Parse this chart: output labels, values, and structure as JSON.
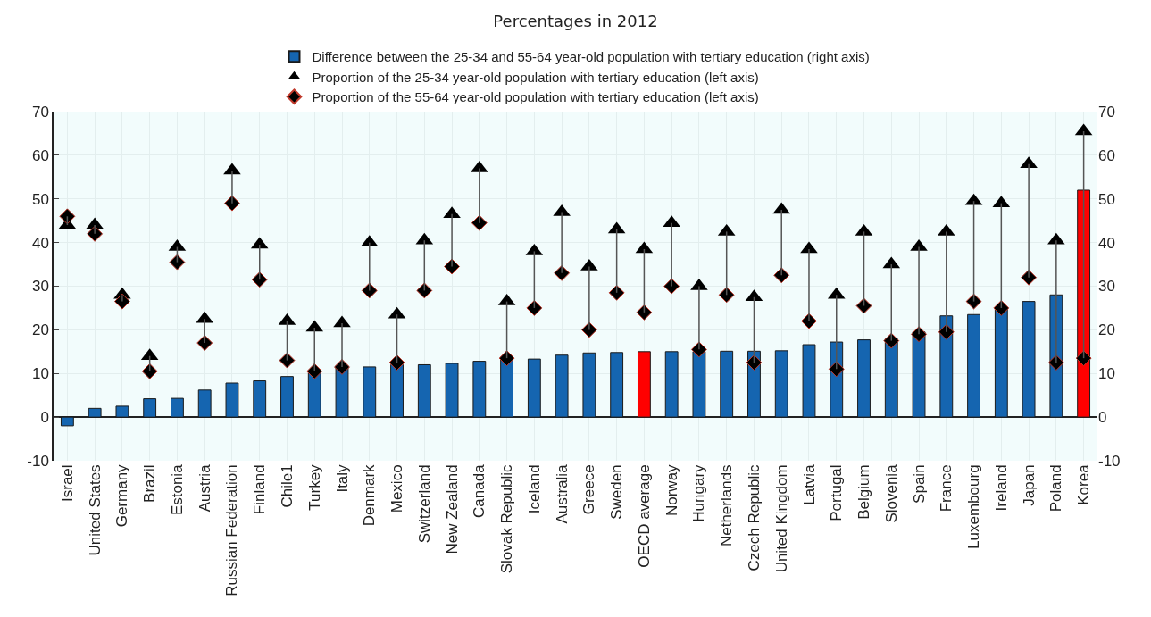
{
  "chart_data": {
    "type": "bar",
    "title": "Percentages in 2012",
    "categories": [
      "Israel",
      "United States",
      "Germany",
      "Brazil",
      "Estonia",
      "Austria",
      "Russian Federation",
      "Finland",
      "Chile1",
      "Turkey",
      "Italy",
      "Denmark",
      "Mexico",
      "Switzerland",
      "New Zealand",
      "Canada",
      "Slovak Republic",
      "Iceland",
      "Australia",
      "Greece",
      "Sweden",
      "OECD average",
      "Norway",
      "Hungary",
      "Netherlands",
      "Czech Republic",
      "United Kingdom",
      "Latvia",
      "Portugal",
      "Belgium",
      "Slovenia",
      "Spain",
      "France",
      "Luxembourg",
      "Ireland",
      "Japan",
      "Poland",
      "Korea"
    ],
    "series": [
      {
        "name": "Difference between the 25-34 and 55-64 year-old population with tertiary education (right axis)",
        "axis": "y2",
        "colors": [
          "#1565b0",
          "#1565b0",
          "#1565b0",
          "#1565b0",
          "#1565b0",
          "#1565b0",
          "#1565b0",
          "#1565b0",
          "#1565b0",
          "#1565b0",
          "#1565b0",
          "#1565b0",
          "#1565b0",
          "#1565b0",
          "#1565b0",
          "#1565b0",
          "#1565b0",
          "#1565b0",
          "#1565b0",
          "#1565b0",
          "#1565b0",
          "#ff0000",
          "#1565b0",
          "#1565b0",
          "#1565b0",
          "#1565b0",
          "#1565b0",
          "#1565b0",
          "#1565b0",
          "#1565b0",
          "#1565b0",
          "#1565b0",
          "#1565b0",
          "#1565b0",
          "#1565b0",
          "#1565b0",
          "#1565b0",
          "#ff0000"
        ],
        "values": [
          -2,
          2,
          2.5,
          4.2,
          4.3,
          6.2,
          7.8,
          8.3,
          9.3,
          10.3,
          11.3,
          11.5,
          12,
          12,
          12.3,
          12.8,
          13.2,
          13.3,
          14.2,
          14.7,
          14.8,
          15,
          15,
          15,
          15.1,
          15.1,
          15.2,
          16.6,
          17.2,
          17.7,
          17.9,
          19.5,
          23.2,
          23.5,
          25,
          26.5,
          28,
          52
        ]
      },
      {
        "name": "Proportion of the 25-34 year-old population with tertiary education (left axis)",
        "type": "scatter",
        "marker": "triangle",
        "color": "#000000",
        "values": [
          44,
          44,
          28,
          14,
          39,
          22.5,
          56.5,
          39.5,
          22,
          20.5,
          21.5,
          40,
          23.5,
          40.5,
          46.5,
          57,
          26.5,
          38,
          47,
          34.5,
          43,
          38.5,
          44.5,
          30,
          42.5,
          27.5,
          47.5,
          38.5,
          28,
          42.5,
          35,
          39,
          42.5,
          49.5,
          49,
          58,
          40.5,
          65.5
        ]
      },
      {
        "name": "Proportion of the 55-64 year-old population with tertiary education (left axis)",
        "type": "scatter",
        "marker": "diamond",
        "color": "#000000",
        "values": [
          46,
          42,
          26.5,
          10.5,
          35.5,
          17,
          49,
          31.5,
          13,
          10.5,
          11.5,
          29,
          12.5,
          29,
          34.5,
          44.5,
          13.5,
          25,
          33,
          20,
          28.5,
          24,
          30,
          15.5,
          28,
          12.5,
          32.5,
          22,
          11,
          25.5,
          17.5,
          19,
          19.5,
          26.5,
          25,
          32,
          12.5,
          13.5
        ]
      }
    ],
    "ylim": [
      -10,
      70
    ],
    "yticks": [
      -10,
      0,
      10,
      20,
      30,
      40,
      50,
      60,
      70
    ],
    "y2lim": [
      -10,
      70
    ],
    "y2ticks": [
      -10,
      0,
      10,
      20,
      30,
      40,
      50,
      60,
      70
    ],
    "grid": true,
    "legend": "top"
  }
}
